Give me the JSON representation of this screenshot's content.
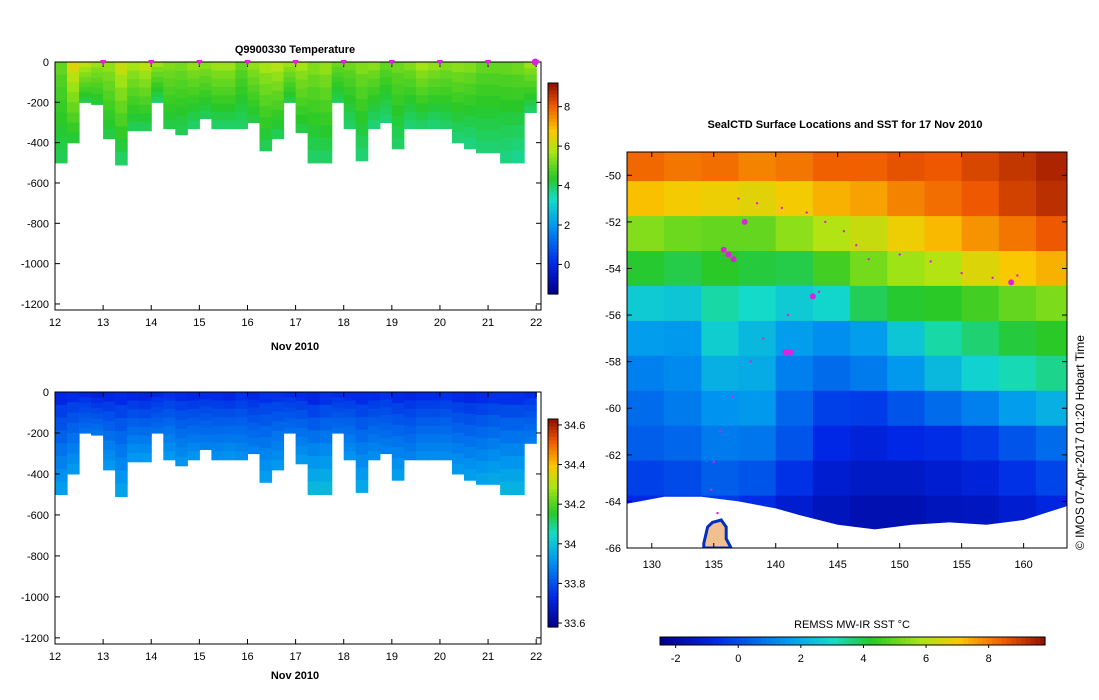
{
  "chart_data": [
    {
      "type": "heatmap",
      "title": "Q9900330  Temperature",
      "xlabel": "Nov 2010",
      "ylabel": "",
      "x_ticks": [
        "12",
        "13",
        "14",
        "15",
        "16",
        "17",
        "18",
        "19",
        "20",
        "21",
        "22"
      ],
      "x_range": [
        12,
        22.1
      ],
      "y_ticks": [
        "0",
        "-200",
        "-400",
        "-600",
        "-800",
        "-1000",
        "-1200"
      ],
      "y_range": [
        -1230,
        0
      ],
      "colorbar_ticks": [
        "0",
        "2",
        "4",
        "6",
        "8"
      ],
      "colorbar_range": [
        -1.5,
        9.2
      ],
      "profile_markers_x": [
        13,
        14,
        15,
        16,
        17,
        18,
        19,
        20,
        21,
        22
      ],
      "profiles": {
        "x_start": [
          12.0,
          12.25,
          12.5,
          12.75,
          13.0,
          13.25,
          13.5,
          13.75,
          14.0,
          14.25,
          14.5,
          14.75,
          15.0,
          15.25,
          15.5,
          15.75,
          16.0,
          16.25,
          16.5,
          16.75,
          17.0,
          17.25,
          17.5,
          17.75,
          18.0,
          18.25,
          18.5,
          18.75,
          19.0,
          19.25,
          19.5,
          19.75,
          20.0,
          20.25,
          20.5,
          20.75,
          21.0,
          21.25,
          21.5,
          21.75
        ],
        "max_depth": [
          500,
          400,
          200,
          210,
          380,
          510,
          340,
          340,
          200,
          330,
          360,
          330,
          280,
          330,
          330,
          330,
          300,
          440,
          380,
          200,
          350,
          500,
          500,
          200,
          330,
          490,
          330,
          300,
          430,
          330,
          330,
          330,
          330,
          400,
          430,
          450,
          450,
          500,
          500,
          250
        ],
        "surface_temp": [
          5.0,
          6.4,
          6.0,
          5.6,
          5.5,
          6.1,
          5.7,
          6.0,
          5.6,
          5.3,
          5.2,
          5.5,
          5.4,
          5.6,
          5.6,
          5.0,
          5.5,
          5.7,
          5.9,
          5.6,
          5.7,
          5.3,
          5.5,
          5.1,
          5.1,
          5.3,
          5.4,
          5.0,
          5.1,
          5.3,
          5.7,
          5.5,
          5.3,
          5.4,
          5.3,
          5.0,
          5.0,
          5.0,
          5.1,
          5.6
        ],
        "deep_temp": [
          4.1,
          4.3,
          4.2,
          4.3,
          4.2,
          4.0,
          4.1,
          4.1,
          4.0,
          4.2,
          4.1,
          4.0,
          4.1,
          4.0,
          4.0,
          4.0,
          4.2,
          4.1,
          4.1,
          4.2,
          4.2,
          4.0,
          4.0,
          4.1,
          4.0,
          3.9,
          3.9,
          3.9,
          4.0,
          3.9,
          4.0,
          3.9,
          4.0,
          3.9,
          3.8,
          3.9,
          3.9,
          3.8,
          3.7,
          4.0
        ]
      }
    },
    {
      "type": "heatmap",
      "title": "",
      "xlabel": "Nov 2010",
      "ylabel": "",
      "x_ticks": [
        "12",
        "13",
        "14",
        "15",
        "16",
        "17",
        "18",
        "19",
        "20",
        "21",
        "22"
      ],
      "x_range": [
        12,
        22.1
      ],
      "y_ticks": [
        "0",
        "-200",
        "-400",
        "-600",
        "-800",
        "-1000",
        "-1200"
      ],
      "y_range": [
        -1230,
        0
      ],
      "colorbar_ticks": [
        "33.6",
        "33.8",
        "34",
        "34.2",
        "34.4",
        "34.6"
      ],
      "colorbar_range": [
        33.58,
        34.63
      ],
      "profiles": {
        "x_start": [
          12.0,
          12.25,
          12.5,
          12.75,
          13.0,
          13.25,
          13.5,
          13.75,
          14.0,
          14.25,
          14.5,
          14.75,
          15.0,
          15.25,
          15.5,
          15.75,
          16.0,
          16.25,
          16.5,
          16.75,
          17.0,
          17.25,
          17.5,
          17.75,
          18.0,
          18.25,
          18.5,
          18.75,
          19.0,
          19.25,
          19.5,
          19.75,
          20.0,
          20.25,
          20.5,
          20.75,
          21.0,
          21.25,
          21.5,
          21.75
        ],
        "max_depth": [
          500,
          400,
          200,
          210,
          380,
          510,
          340,
          340,
          200,
          330,
          360,
          330,
          280,
          330,
          330,
          330,
          300,
          440,
          380,
          200,
          350,
          500,
          500,
          200,
          330,
          490,
          330,
          300,
          430,
          330,
          330,
          330,
          330,
          400,
          430,
          450,
          450,
          500,
          500,
          250
        ],
        "surface_sal": [
          33.72,
          33.73,
          33.72,
          33.7,
          33.72,
          33.73,
          33.72,
          33.71,
          33.72,
          33.74,
          33.73,
          33.72,
          33.73,
          33.73,
          33.72,
          33.74,
          33.72,
          33.74,
          33.74,
          33.73,
          33.73,
          33.72,
          33.74,
          33.73,
          33.73,
          33.73,
          33.73,
          33.74,
          33.73,
          33.72,
          33.73,
          33.73,
          33.74,
          33.73,
          33.72,
          33.73,
          33.74,
          33.74,
          33.74,
          33.73
        ],
        "deep_sal": [
          33.93,
          33.92,
          33.85,
          33.86,
          33.92,
          33.94,
          33.92,
          33.92,
          33.85,
          33.92,
          33.91,
          33.91,
          33.88,
          33.9,
          33.91,
          33.9,
          33.88,
          33.93,
          33.92,
          33.85,
          33.92,
          33.98,
          33.98,
          33.85,
          33.91,
          33.95,
          33.9,
          33.88,
          33.93,
          33.88,
          33.9,
          33.9,
          33.9,
          33.92,
          33.93,
          33.94,
          33.95,
          33.97,
          33.97,
          33.87
        ]
      }
    },
    {
      "type": "heatmap",
      "title": "SealCTD Surface Locations and SST for 17 Nov 2010",
      "xlabel": "",
      "ylabel": "",
      "x_ticks": [
        "130",
        "135",
        "140",
        "145",
        "150",
        "155",
        "160"
      ],
      "x_range": [
        128,
        163.5
      ],
      "y_ticks": [
        "-50",
        "-52",
        "-54",
        "-56",
        "-58",
        "-60",
        "-62",
        "-64",
        "-66"
      ],
      "y_range": [
        -66,
        -49
      ],
      "colorbar_title": "REMSS MW-IR SST °C",
      "colorbar_ticks": [
        "-2",
        "0",
        "2",
        "4",
        "6",
        "8"
      ],
      "colorbar_range": [
        -2.5,
        9.8
      ],
      "sst_rows": [
        {
          "lat": -49.5,
          "sst": [
            8.4,
            8.2,
            8.3,
            8.0,
            8.2,
            8.5,
            8.5,
            8.7,
            8.6,
            8.9,
            9.2,
            9.5
          ]
        },
        {
          "lat": -51.0,
          "sst": [
            7.2,
            7.0,
            6.9,
            6.7,
            7.0,
            7.4,
            7.6,
            8.0,
            8.3,
            8.6,
            9.0,
            9.3
          ]
        },
        {
          "lat": -52.5,
          "sst": [
            5.4,
            5.1,
            5.0,
            5.0,
            5.5,
            6.0,
            6.3,
            6.9,
            7.3,
            7.8,
            8.2,
            8.6
          ]
        },
        {
          "lat": -54.0,
          "sst": [
            4.2,
            4.0,
            4.3,
            4.1,
            4.0,
            4.6,
            5.2,
            5.7,
            6.0,
            6.6,
            7.1,
            7.4
          ]
        },
        {
          "lat": -55.5,
          "sst": [
            2.6,
            2.5,
            3.3,
            3.0,
            2.6,
            2.9,
            3.9,
            4.2,
            4.3,
            4.6,
            5.0,
            5.3
          ]
        },
        {
          "lat": -57.0,
          "sst": [
            1.6,
            1.5,
            2.7,
            2.2,
            1.6,
            1.3,
            1.6,
            2.5,
            3.3,
            3.7,
            4.1,
            4.3
          ]
        },
        {
          "lat": -58.5,
          "sst": [
            1.0,
            1.2,
            2.0,
            1.9,
            1.0,
            0.6,
            0.9,
            1.5,
            2.2,
            2.8,
            3.2,
            3.5
          ]
        },
        {
          "lat": -60.0,
          "sst": [
            0.6,
            0.9,
            1.4,
            1.5,
            0.5,
            -0.3,
            -0.4,
            0.1,
            0.6,
            1.0,
            1.6,
            2.0
          ]
        },
        {
          "lat": -61.5,
          "sst": [
            0.3,
            0.5,
            0.9,
            0.8,
            0.1,
            -0.8,
            -1.0,
            -0.8,
            -0.7,
            -0.4,
            0.1,
            0.6
          ]
        },
        {
          "lat": -63.0,
          "sst": [
            -0.3,
            -0.1,
            0.3,
            0.1,
            -0.6,
            -1.2,
            -1.4,
            -1.4,
            -1.2,
            -1.0,
            -0.6,
            -0.2
          ]
        },
        {
          "lat": -64.5,
          "sst": [
            -0.8,
            -0.6,
            -0.4,
            -0.7,
            -1.2,
            -1.6,
            -1.8,
            -1.8,
            -1.6,
            -1.5,
            -1.2,
            -0.9
          ]
        }
      ],
      "sst_lon_start": [
        128,
        131,
        134,
        137,
        140,
        143,
        146,
        149,
        152,
        155,
        158,
        161
      ],
      "ice_edge": [
        [
          128,
          -64.1
        ],
        [
          131,
          -63.8
        ],
        [
          134,
          -63.8
        ],
        [
          137,
          -64.0
        ],
        [
          140,
          -64.3
        ],
        [
          142,
          -64.6
        ],
        [
          145,
          -65.0
        ],
        [
          148,
          -65.2
        ],
        [
          151,
          -65.0
        ],
        [
          154,
          -64.9
        ],
        [
          157,
          -65.0
        ],
        [
          160,
          -64.8
        ],
        [
          163.5,
          -64.2
        ]
      ],
      "track": [
        {
          "lon": 137.0,
          "lat": -51.0
        },
        {
          "lon": 138.5,
          "lat": -51.2
        },
        {
          "lon": 140.5,
          "lat": -51.4
        },
        {
          "lon": 142.5,
          "lat": -51.6
        },
        {
          "lon": 144.0,
          "lat": -52.0
        },
        {
          "lon": 145.5,
          "lat": -52.4
        },
        {
          "lon": 146.5,
          "lat": -53.0
        },
        {
          "lon": 147.5,
          "lat": -53.6
        },
        {
          "lon": 150.0,
          "lat": -53.4
        },
        {
          "lon": 152.5,
          "lat": -53.7
        },
        {
          "lon": 155.0,
          "lat": -54.2
        },
        {
          "lon": 157.5,
          "lat": -54.4
        },
        {
          "lon": 159.5,
          "lat": -54.3
        },
        {
          "lon": 143.5,
          "lat": -55.0
        },
        {
          "lon": 141.0,
          "lat": -56.0
        },
        {
          "lon": 139.0,
          "lat": -57.0
        },
        {
          "lon": 138.0,
          "lat": -58.0
        },
        {
          "lon": 136.5,
          "lat": -59.5
        },
        {
          "lon": 135.5,
          "lat": -61.0
        },
        {
          "lon": 135.0,
          "lat": -62.3
        },
        {
          "lon": 134.8,
          "lat": -63.5
        },
        {
          "lon": 135.3,
          "lat": -64.5
        }
      ],
      "surface_locations": [
        {
          "lon": 135.8,
          "lat": -53.2
        },
        {
          "lon": 136.2,
          "lat": -53.4
        },
        {
          "lon": 136.6,
          "lat": -53.6
        },
        {
          "lon": 140.8,
          "lat": -57.6
        },
        {
          "lon": 141.2,
          "lat": -57.6
        },
        {
          "lon": 159.0,
          "lat": -54.6
        },
        {
          "lon": 137.5,
          "lat": -52.0
        },
        {
          "lon": 143.0,
          "lat": -55.2
        }
      ],
      "coast": [
        [
          134.2,
          -65.8
        ],
        [
          134.5,
          -65.1
        ],
        [
          134.9,
          -64.9
        ],
        [
          135.6,
          -64.8
        ],
        [
          136.0,
          -65.1
        ],
        [
          136.0,
          -65.6
        ],
        [
          136.4,
          -66.0
        ],
        [
          134.2,
          -66.0
        ]
      ]
    }
  ],
  "credit": "© IMOS 07-Apr-2017 01:20 Hobart Time"
}
